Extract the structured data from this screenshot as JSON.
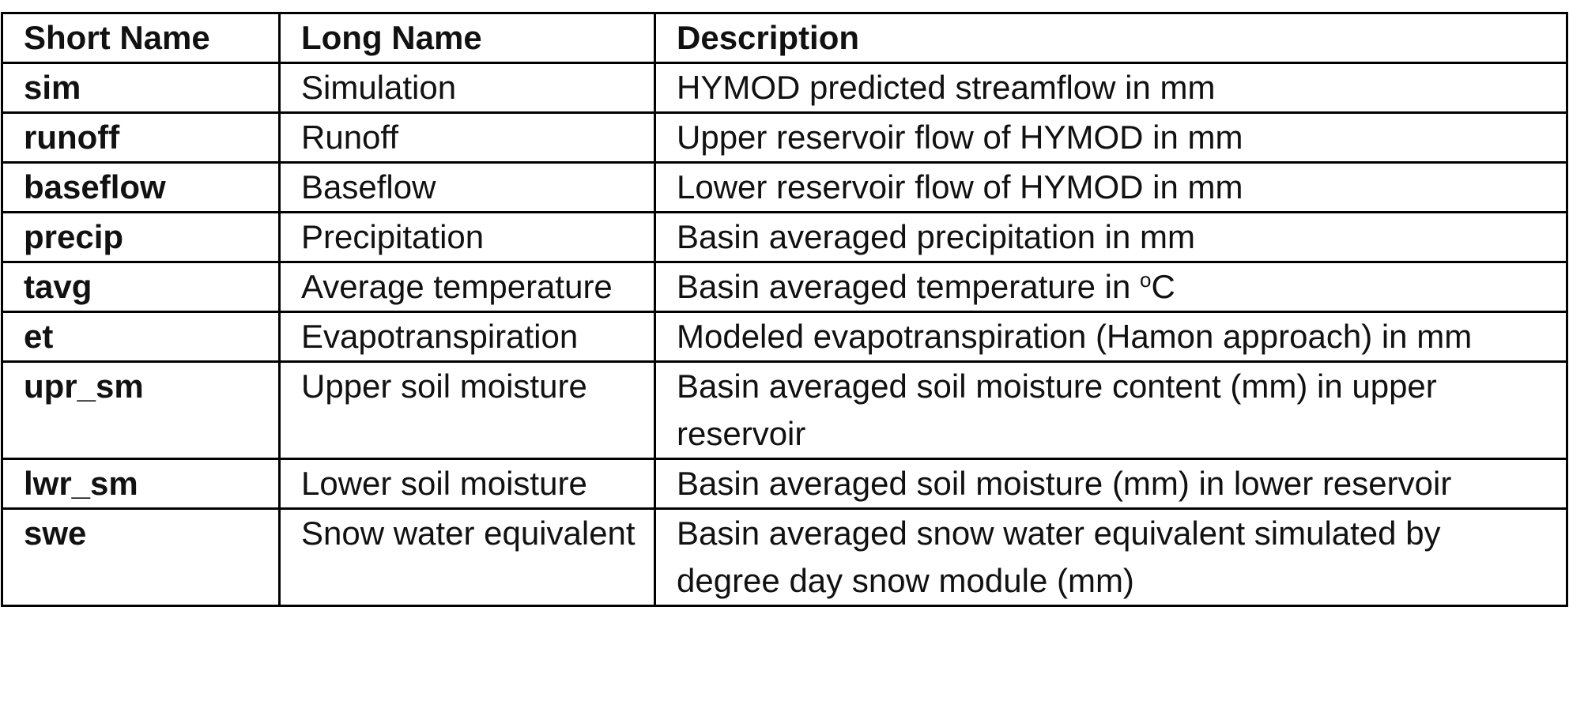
{
  "table": {
    "headers": [
      "Short Name",
      "Long Name",
      "Description"
    ],
    "rows": [
      {
        "short": "sim",
        "long": "Simulation",
        "desc": "HYMOD predicted streamflow in mm"
      },
      {
        "short": "runoff",
        "long": "Runoff",
        "desc": "Upper reservoir flow of HYMOD in mm"
      },
      {
        "short": "baseflow",
        "long": "Baseflow",
        "desc": "Lower reservoir flow of HYMOD in mm"
      },
      {
        "short": "precip",
        "long": "Precipitation",
        "desc": "Basin averaged precipitation in mm"
      },
      {
        "short": "tavg",
        "long": "Average temperature",
        "desc": "Basin averaged temperature in ",
        "desc_sup": "o",
        "desc_tail": "C"
      },
      {
        "short": "et",
        "long": "Evapotranspiration",
        "desc": "Modeled evapotranspiration (Hamon approach) in mm"
      },
      {
        "short": "upr_sm",
        "long": "Upper soil moisture",
        "desc": "Basin averaged soil moisture content (mm) in upper reservoir"
      },
      {
        "short": "lwr_sm",
        "long": "Lower soil moisture",
        "desc": "Basin averaged soil moisture (mm) in lower reservoir"
      },
      {
        "short": "swe",
        "long": "Snow water equivalent",
        "desc": "Basin averaged snow water equivalent simulated by degree day snow module (mm)"
      }
    ]
  }
}
